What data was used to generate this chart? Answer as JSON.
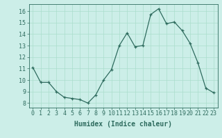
{
  "x": [
    0,
    1,
    2,
    3,
    4,
    5,
    6,
    7,
    8,
    9,
    10,
    11,
    12,
    13,
    14,
    15,
    16,
    17,
    18,
    19,
    20,
    21,
    22,
    23
  ],
  "y": [
    11.1,
    9.8,
    9.8,
    9.0,
    8.5,
    8.4,
    8.3,
    8.0,
    8.7,
    10.0,
    10.9,
    13.0,
    14.1,
    12.9,
    13.0,
    15.7,
    16.2,
    14.9,
    15.05,
    14.3,
    13.2,
    11.5,
    9.3,
    8.9
  ],
  "line_color": "#2e6b5e",
  "marker": "+",
  "marker_size": 3,
  "marker_linewidth": 0.9,
  "bg_color": "#cceee8",
  "grid_color": "#aaddcc",
  "tick_color": "#2e6b5e",
  "xlabel": "Humidex (Indice chaleur)",
  "xlabel_fontsize": 7,
  "tick_fontsize": 6,
  "ylim": [
    7.6,
    16.6
  ],
  "xlim": [
    -0.5,
    23.5
  ],
  "yticks": [
    8,
    9,
    10,
    11,
    12,
    13,
    14,
    15,
    16
  ],
  "xticks": [
    0,
    1,
    2,
    3,
    4,
    5,
    6,
    7,
    8,
    9,
    10,
    11,
    12,
    13,
    14,
    15,
    16,
    17,
    18,
    19,
    20,
    21,
    22,
    23
  ],
  "linewidth": 0.9
}
